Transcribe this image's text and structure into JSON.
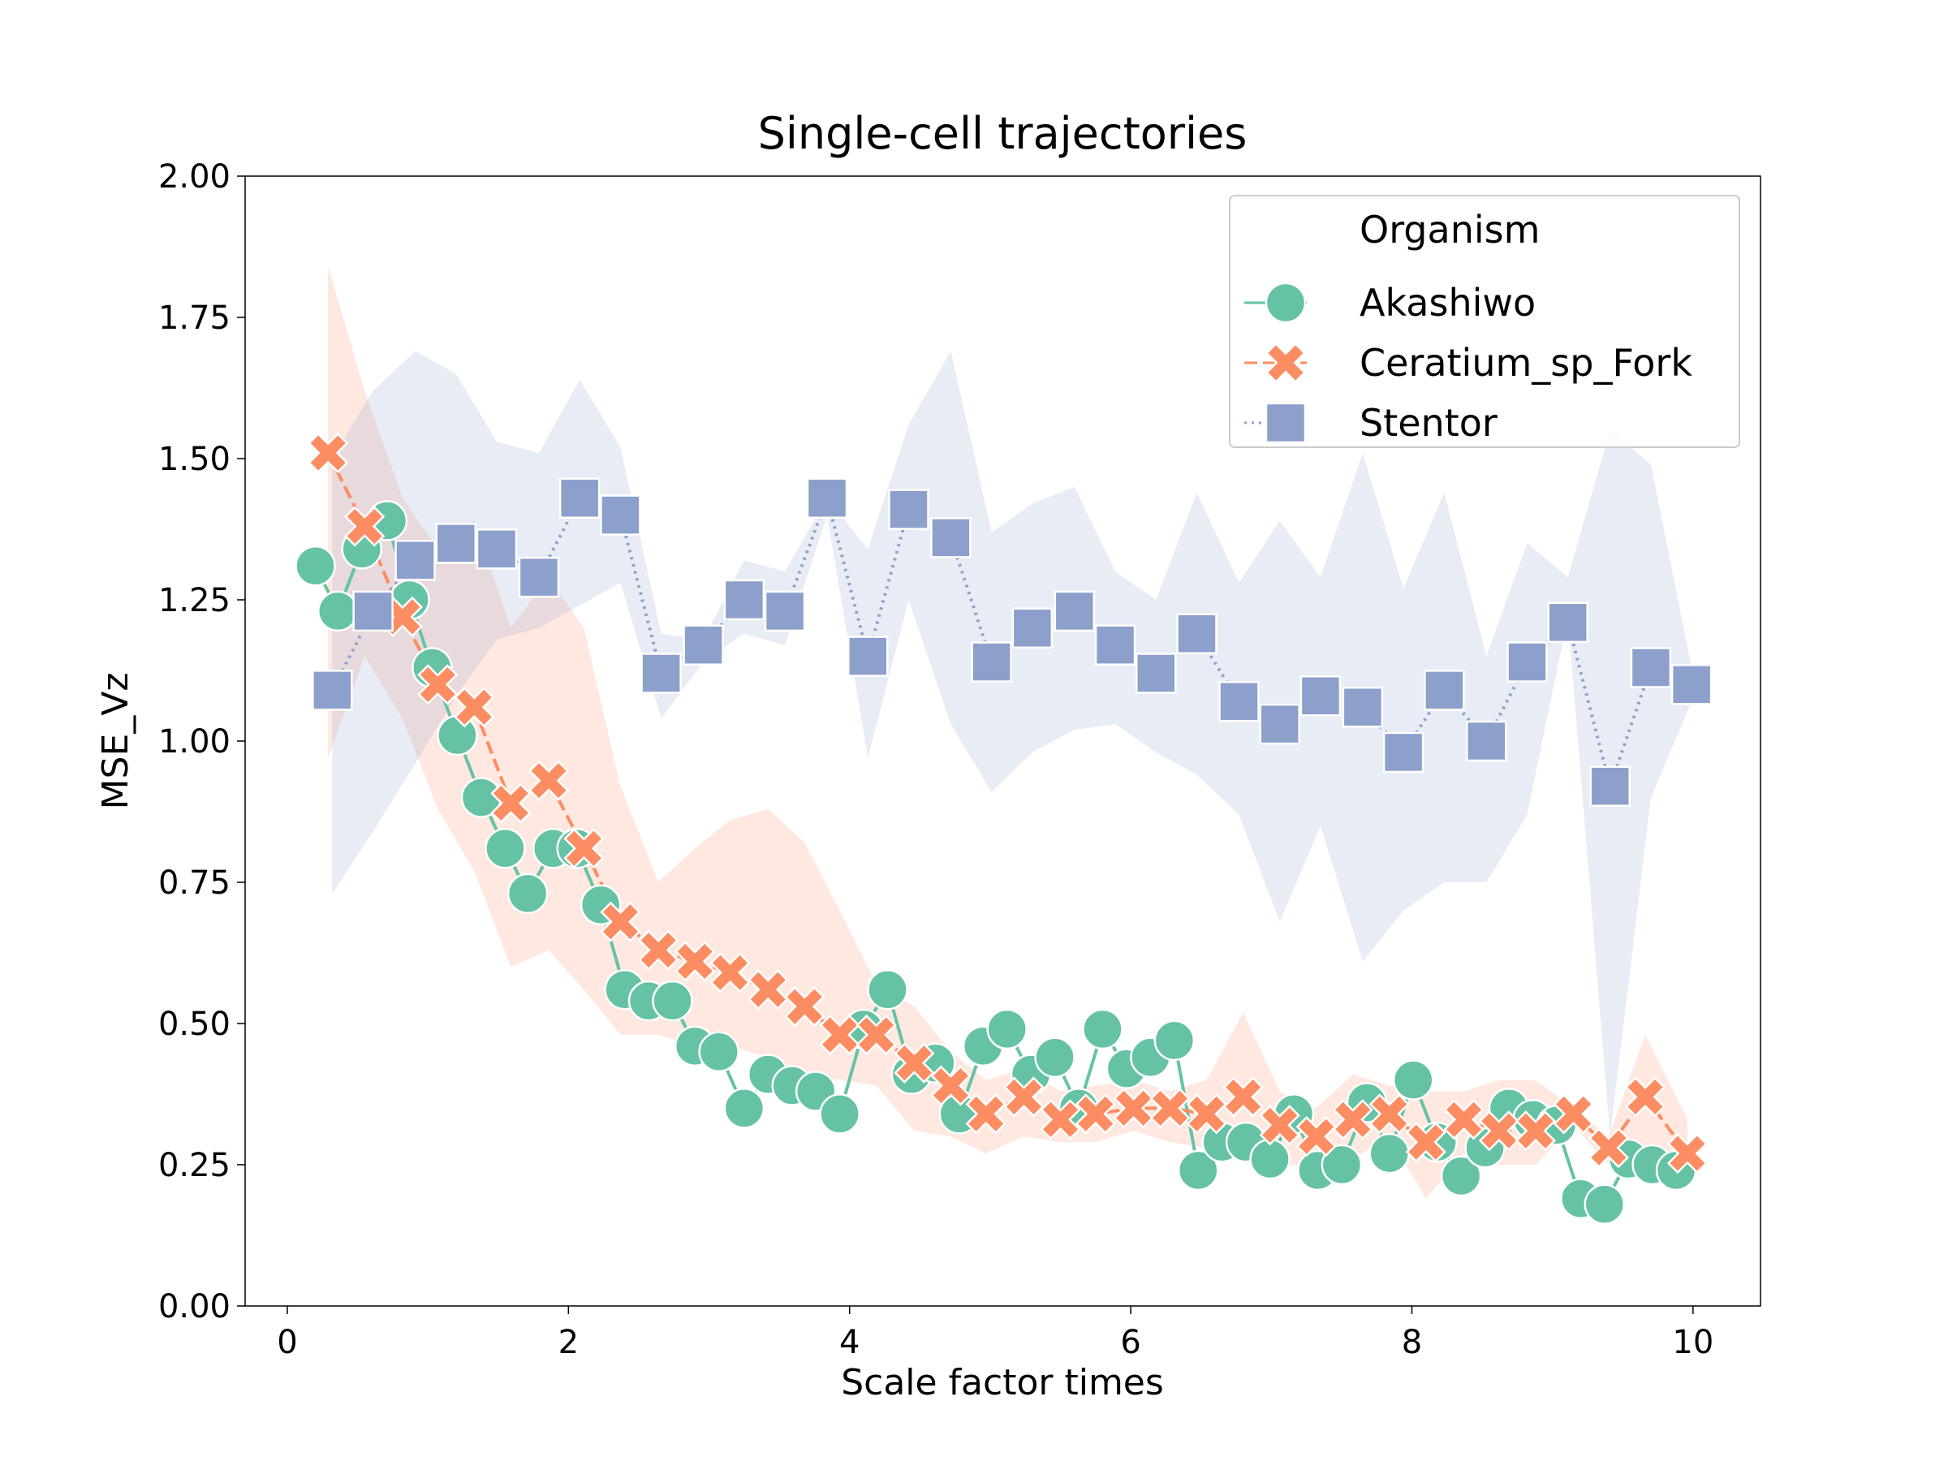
{
  "chart_data": {
    "type": "line",
    "title": "Single-cell trajectories",
    "x_label": "Scale factor times",
    "y_label": "MSE_Vz",
    "xlim": [
      -0.3,
      10.48
    ],
    "ylim": [
      0,
      2
    ],
    "xticks": [
      0,
      2,
      4,
      6,
      8,
      10
    ],
    "yticks": [
      {
        "value": 0,
        "label": "0.00"
      },
      {
        "value": 0.25,
        "label": "0.25"
      },
      {
        "value": 0.5,
        "label": "0.50"
      },
      {
        "value": 0.75,
        "label": "0.75"
      },
      {
        "value": 1,
        "label": "1.00"
      },
      {
        "value": 1.25,
        "label": "1.25"
      },
      {
        "value": 1.5,
        "label": "1.50"
      },
      {
        "value": 1.75,
        "label": "1.75"
      },
      {
        "value": 2,
        "label": "2.00"
      }
    ],
    "grid": false,
    "legend_title": "Organism",
    "legend_position": "upper right",
    "series": [
      {
        "name": "Akashiwo",
        "color": "#66c2a5",
        "marker": "circle",
        "linestyle": "solid",
        "x": [
          0.2,
          0.36,
          0.53,
          0.71,
          0.87,
          1.03,
          1.21,
          1.38,
          1.55,
          1.71,
          1.89,
          2.06,
          2.23,
          2.4,
          2.57,
          2.74,
          2.9,
          3.07,
          3.25,
          3.42,
          3.59,
          3.76,
          3.93,
          4.1,
          4.27,
          4.44,
          4.61,
          4.78,
          4.95,
          5.12,
          5.29,
          5.46,
          5.63,
          5.8,
          5.97,
          6.14,
          6.31,
          6.48,
          6.65,
          6.82,
          6.99,
          7.16,
          7.33,
          7.5,
          7.68,
          7.84,
          8.01,
          8.18,
          8.35,
          8.52,
          8.69,
          8.86,
          9.03,
          9.2,
          9.37,
          9.54,
          9.71,
          9.88
        ],
        "values": [
          1.31,
          1.23,
          1.34,
          1.39,
          1.25,
          1.13,
          1.01,
          0.9,
          0.81,
          0.73,
          0.81,
          0.81,
          0.71,
          0.56,
          0.54,
          0.54,
          0.46,
          0.45,
          0.35,
          0.41,
          0.39,
          0.38,
          0.34,
          0.49,
          0.56,
          0.41,
          0.43,
          0.34,
          0.46,
          0.49,
          0.41,
          0.44,
          0.35,
          0.49,
          0.42,
          0.44,
          0.47,
          0.24,
          0.29,
          0.29,
          0.26,
          0.34,
          0.24,
          0.25,
          0.36,
          0.27,
          0.4,
          0.29,
          0.23,
          0.28,
          0.35,
          0.33,
          0.32,
          0.19,
          0.18,
          0.26,
          0.25,
          0.24
        ]
      },
      {
        "name": "Ceratium_sp_Fork",
        "color": "#fc8d62",
        "marker": "x",
        "linestyle": "dashed",
        "x": [
          0.29,
          0.55,
          0.82,
          1.07,
          1.33,
          1.59,
          1.86,
          2.11,
          2.37,
          2.64,
          2.9,
          3.15,
          3.42,
          3.68,
          3.93,
          4.19,
          4.46,
          4.72,
          4.97,
          5.24,
          5.5,
          5.75,
          6.02,
          6.28,
          6.54,
          6.8,
          7.06,
          7.32,
          7.58,
          7.84,
          8.1,
          8.37,
          8.62,
          8.88,
          9.15,
          9.4,
          9.66,
          9.96
        ],
        "values": [
          1.51,
          1.38,
          1.22,
          1.1,
          1.06,
          0.89,
          0.93,
          0.81,
          0.68,
          0.63,
          0.61,
          0.59,
          0.56,
          0.53,
          0.48,
          0.48,
          0.43,
          0.39,
          0.34,
          0.37,
          0.33,
          0.34,
          0.35,
          0.35,
          0.34,
          0.37,
          0.32,
          0.3,
          0.33,
          0.34,
          0.29,
          0.33,
          0.31,
          0.31,
          0.34,
          0.28,
          0.37,
          0.27
        ],
        "ci_lower": [
          0.97,
          1.15,
          1.04,
          0.88,
          0.77,
          0.6,
          0.63,
          0.56,
          0.48,
          0.48,
          0.46,
          0.46,
          0.44,
          0.41,
          0.4,
          0.39,
          0.31,
          0.3,
          0.27,
          0.3,
          0.29,
          0.29,
          0.31,
          0.29,
          0.28,
          0.27,
          0.25,
          0.25,
          0.26,
          0.3,
          0.19,
          0.27,
          0.25,
          0.25,
          0.32,
          0.25,
          0.28,
          0.22
        ],
        "ci_upper": [
          1.84,
          1.62,
          1.43,
          1.34,
          1.39,
          1.2,
          1.29,
          1.2,
          0.92,
          0.75,
          0.81,
          0.86,
          0.88,
          0.82,
          0.7,
          0.57,
          0.53,
          0.45,
          0.4,
          0.42,
          0.38,
          0.39,
          0.4,
          0.38,
          0.4,
          0.52,
          0.38,
          0.35,
          0.41,
          0.39,
          0.38,
          0.38,
          0.4,
          0.4,
          0.35,
          0.3,
          0.48,
          0.33
        ]
      },
      {
        "name": "Stentor",
        "color": "#8da0cb",
        "marker": "square",
        "linestyle": "dotted",
        "x": [
          0.32,
          0.61,
          0.91,
          1.2,
          1.49,
          1.79,
          2.08,
          2.37,
          2.66,
          2.96,
          3.25,
          3.54,
          3.84,
          4.13,
          4.42,
          4.72,
          5.01,
          5.3,
          5.6,
          5.89,
          6.18,
          6.47,
          6.77,
          7.06,
          7.35,
          7.65,
          7.94,
          8.23,
          8.53,
          8.82,
          9.11,
          9.41,
          9.7,
          9.99
        ],
        "values": [
          1.09,
          1.23,
          1.32,
          1.35,
          1.34,
          1.29,
          1.43,
          1.4,
          1.12,
          1.17,
          1.25,
          1.23,
          1.43,
          1.15,
          1.41,
          1.36,
          1.14,
          1.2,
          1.23,
          1.17,
          1.12,
          1.19,
          1.07,
          1.03,
          1.08,
          1.06,
          0.98,
          1.09,
          1.0,
          1.14,
          1.21,
          0.92,
          1.13,
          1.1
        ],
        "ci_lower": [
          0.73,
          0.84,
          0.96,
          1.08,
          1.18,
          1.2,
          1.24,
          1.28,
          1.04,
          1.14,
          1.19,
          1.17,
          1.4,
          0.97,
          1.25,
          1.03,
          0.91,
          0.98,
          1.02,
          1.03,
          0.98,
          0.94,
          0.87,
          0.68,
          0.85,
          0.61,
          0.7,
          0.75,
          0.75,
          0.87,
          1.22,
          0.3,
          0.9,
          1.07
        ],
        "ci_upper": [
          1.5,
          1.62,
          1.69,
          1.65,
          1.53,
          1.51,
          1.64,
          1.52,
          1.19,
          1.18,
          1.32,
          1.3,
          1.43,
          1.34,
          1.56,
          1.69,
          1.37,
          1.42,
          1.45,
          1.3,
          1.25,
          1.44,
          1.28,
          1.39,
          1.29,
          1.51,
          1.27,
          1.44,
          1.15,
          1.35,
          1.29,
          1.55,
          1.49,
          1.13
        ]
      }
    ]
  }
}
